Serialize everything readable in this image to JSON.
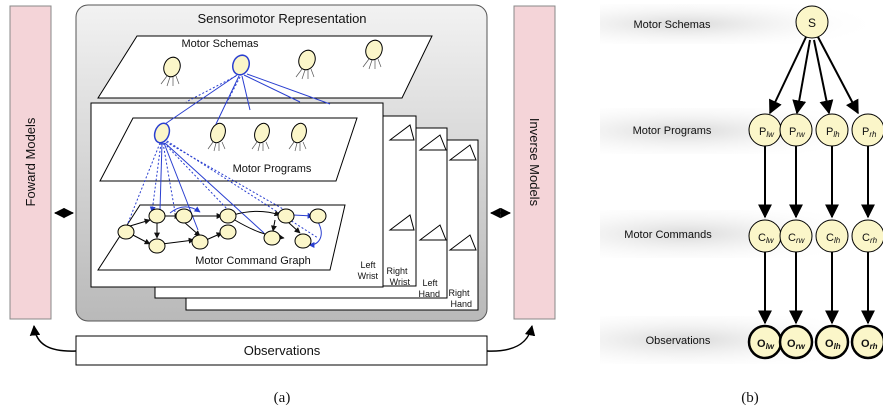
{
  "panel_a": {
    "title": "Sensorimotor Representation",
    "forward_models": "Foward Models",
    "inverse_models": "Inverse Models",
    "observations": "Observations",
    "motor_schemas": "Motor Schemas",
    "motor_programs": "Motor Programs",
    "motor_command_graph": "Motor Command Graph",
    "stack_labels": [
      [
        "Left",
        "Wrist"
      ],
      [
        "Right",
        "Wrist"
      ],
      [
        "Left",
        "Hand"
      ],
      [
        "Right",
        "Hand"
      ]
    ],
    "caption": "(a)"
  },
  "panel_b": {
    "row_labels": [
      "Motor Schemas",
      "Motor Programs",
      "Motor Commands",
      "Observations"
    ],
    "root_node": "S",
    "programs": [
      {
        "base": "P",
        "sub": "lw"
      },
      {
        "base": "P",
        "sub": "rw"
      },
      {
        "base": "P",
        "sub": "lh"
      },
      {
        "base": "P",
        "sub": "rh"
      }
    ],
    "commands": [
      {
        "base": "C",
        "sub": "lw"
      },
      {
        "base": "C",
        "sub": "rw"
      },
      {
        "base": "C",
        "sub": "lh"
      },
      {
        "base": "C",
        "sub": "rh"
      }
    ],
    "observations": [
      {
        "base": "O",
        "sub": "lw"
      },
      {
        "base": "O",
        "sub": "rw"
      },
      {
        "base": "O",
        "sub": "lh"
      },
      {
        "base": "O",
        "sub": "rh"
      }
    ],
    "caption": "(b)"
  },
  "colors": {
    "node_fill": "#fbf6c9",
    "model_box": "#f4d4d8",
    "highlight": "#2a3fd0",
    "row_band": "#e6e6e6"
  }
}
